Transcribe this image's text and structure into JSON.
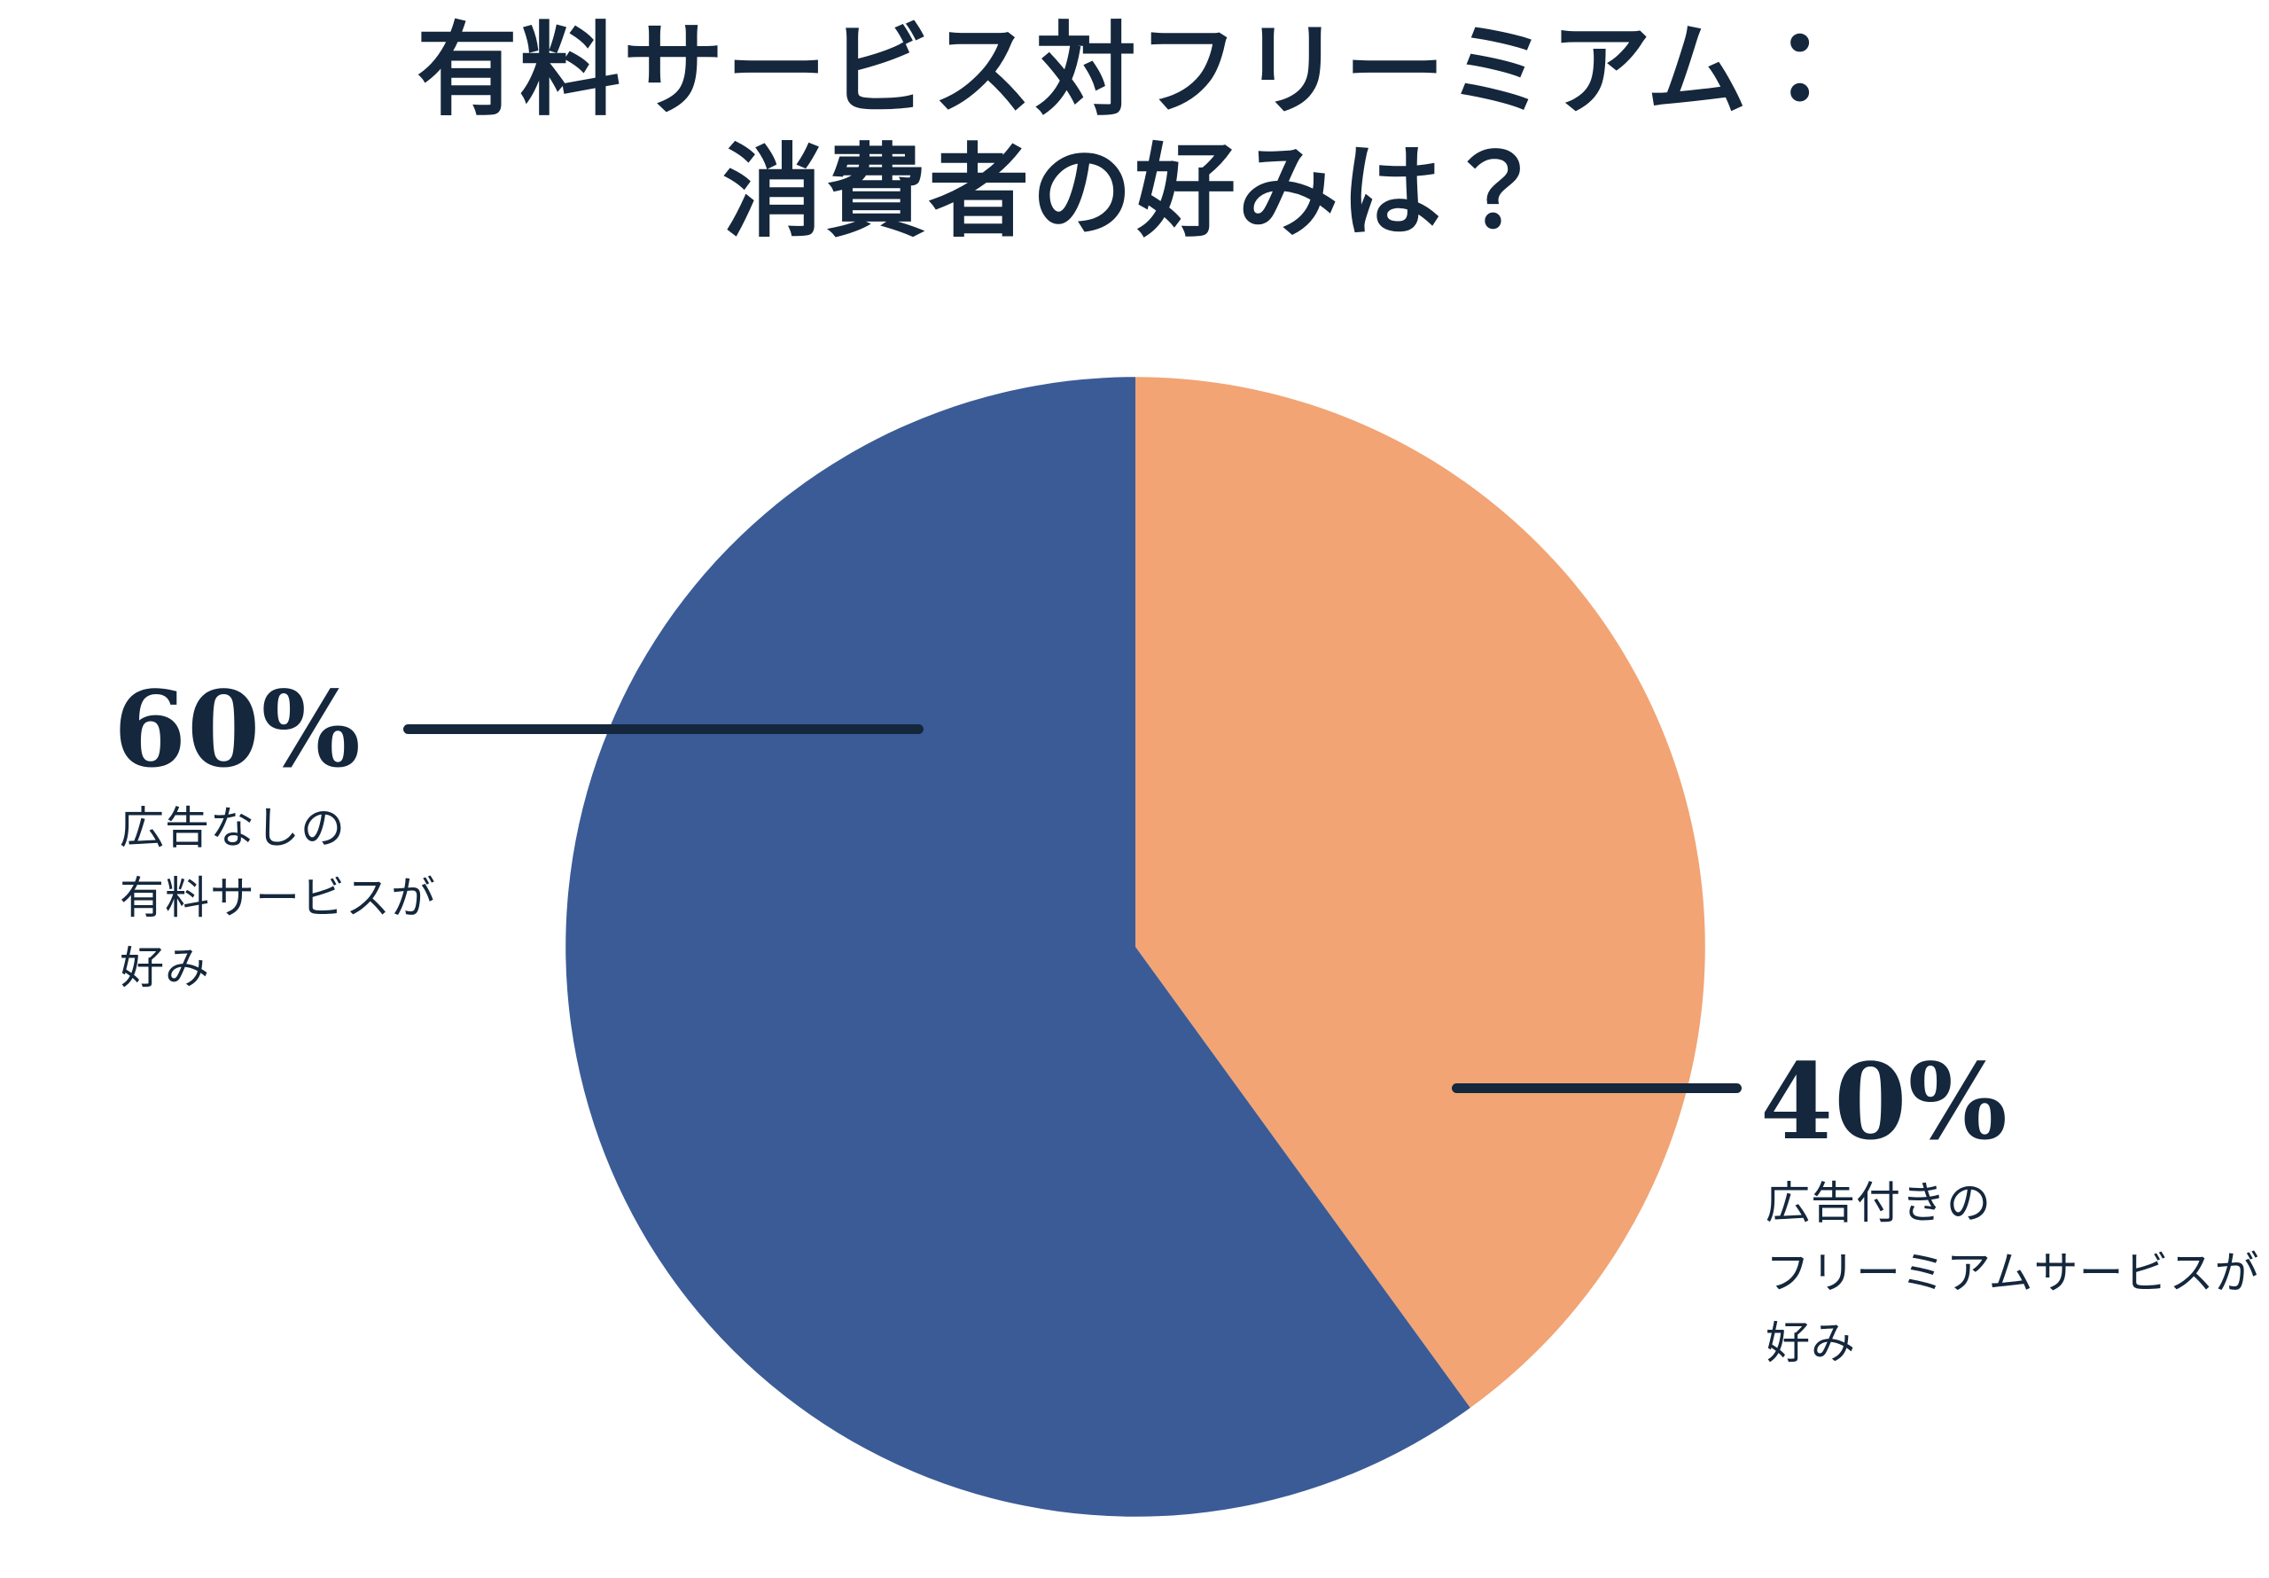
{
  "title": {
    "line1": "有料サービス対フリーミアム：",
    "line2": "消費者の好みは？"
  },
  "colors": {
    "text_navy": "#14273C",
    "slice_blue": "#3B5B97",
    "slice_orange": "#F2A474",
    "background": "#FFFFFF"
  },
  "chart_data": {
    "type": "pie",
    "title": "有料サービス対フリーミアム：消費者の好みは？",
    "start_angle_deg": 0,
    "direction": "clockwise",
    "legend": "none",
    "data_labels": "external-callouts",
    "slices": [
      {
        "id": "freemium",
        "label": "広告付きのフリーミアムサービスが好み",
        "value": 40,
        "color": "#F2A474"
      },
      {
        "id": "paid",
        "label": "広告なしの有料サービスが好み",
        "value": 60,
        "color": "#3B5B97"
      }
    ]
  },
  "annotations": {
    "paid": {
      "value_label": "60%",
      "lines": [
        "広告なしの",
        "有料サービスが",
        "好み"
      ]
    },
    "freemium": {
      "value_label": "40%",
      "lines": [
        "広告付きの",
        "フリーミアムサービスが",
        "好み"
      ]
    }
  }
}
